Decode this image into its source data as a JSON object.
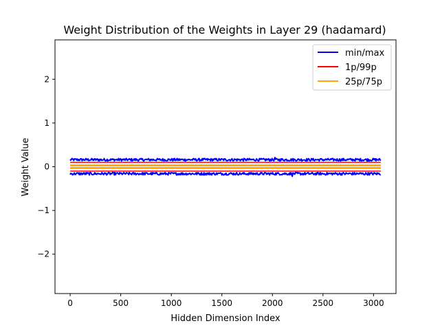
{
  "chart_data": {
    "type": "line",
    "title": "Weight Distribution of the Weights in Layer 29 (hadamard)",
    "xlabel": "Hidden Dimension Index",
    "ylabel": "Weight Value",
    "xlim": [
      -150,
      3222
    ],
    "ylim": [
      -2.9,
      2.9
    ],
    "xticks": [
      0,
      500,
      1000,
      1500,
      2000,
      2500,
      3000
    ],
    "yticks": [
      -2,
      -1,
      0,
      1,
      2
    ],
    "ytick_labels": [
      "−2",
      "−1",
      "0",
      "1",
      "2"
    ],
    "x_range": [
      0,
      3071
    ],
    "grid": false,
    "legend_position": "top-right",
    "series": [
      {
        "name": "min/max",
        "color": "#0000ff",
        "kind": "band-noisy",
        "upper": 0.16,
        "lower": -0.16,
        "noise": 0.03,
        "peak_max": 0.21,
        "peak_min": -0.22
      },
      {
        "name": "1p/99p",
        "color": "#ff0000",
        "kind": "band-flat",
        "upper": 0.1,
        "lower": -0.1
      },
      {
        "name": "25p/75p",
        "color": "#ffa500",
        "kind": "band-flat",
        "upper": 0.04,
        "lower": -0.04
      }
    ],
    "inner_lines": [
      {
        "value": 0.02,
        "color": "#ffa500"
      },
      {
        "value": -0.02,
        "color": "#ffa500"
      }
    ]
  }
}
